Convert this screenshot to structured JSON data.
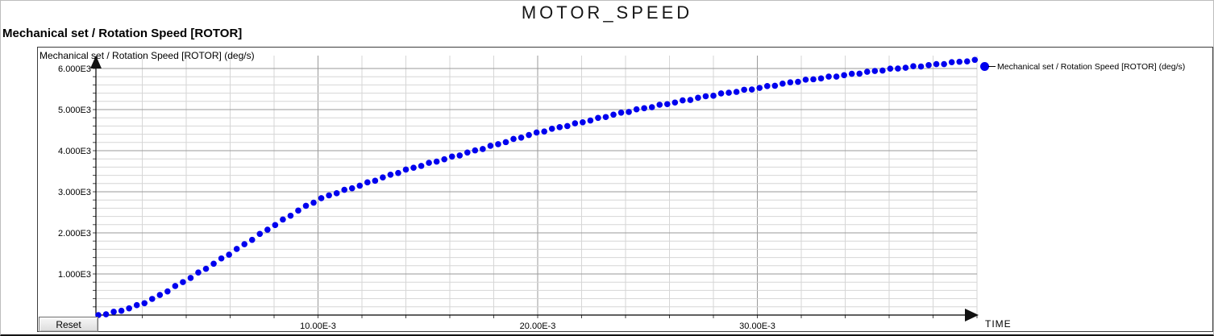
{
  "window": {
    "title": "MOTOR_SPEED"
  },
  "subtitle": "Mechanical set / Rotation Speed [ROTOR]",
  "plot": {
    "y_axis_title": "Mechanical set / Rotation Speed [ROTOR] (deg/s)",
    "x_axis_title": "TIME",
    "reset_label": "Reset",
    "legend": {
      "label": "Mechanical set / Rotation Speed [ROTOR] (deg/s)",
      "marker": "circle"
    }
  },
  "colors": {
    "curve": "#0000ee",
    "grid_minor": "#d6d6d6",
    "grid_major": "#9a9a9a",
    "axis": "#000000"
  },
  "chart_data": {
    "type": "scatter",
    "title": "MOTOR_SPEED",
    "xlabel": "TIME",
    "ylabel": "Mechanical set / Rotation Speed [ROTOR] (deg/s)",
    "x_units": "s",
    "xlim": [
      0,
      0.04
    ],
    "ylim": [
      0,
      6350
    ],
    "grid": "on",
    "legend_position": "right-top",
    "x_tick_labels": [
      "10.00E-3",
      "20.00E-3",
      "30.00E-3"
    ],
    "x_tick_values_s": [
      0.01,
      0.02,
      0.03
    ],
    "y_tick_labels": [
      "1.000E3",
      "2.000E3",
      "3.000E3",
      "4.000E3",
      "5.000E3",
      "6.000E3"
    ],
    "y_tick_values": [
      1000,
      2000,
      3000,
      4000,
      5000,
      6000
    ],
    "minor_grid_x_step_s": 0.002,
    "minor_grid_y_step": 200,
    "series": [
      {
        "name": "Mechanical set / Rotation Speed [ROTOR] (deg/s)",
        "color": "#0000ee",
        "marker": "circle",
        "points": [
          [
            0.0,
            0
          ],
          [
            0.002,
            280
          ],
          [
            0.004,
            850
          ],
          [
            0.006,
            1500
          ],
          [
            0.008,
            2180
          ],
          [
            0.01,
            2800
          ],
          [
            0.012,
            3170
          ],
          [
            0.014,
            3530
          ],
          [
            0.016,
            3830
          ],
          [
            0.018,
            4130
          ],
          [
            0.02,
            4440
          ],
          [
            0.022,
            4690
          ],
          [
            0.024,
            4940
          ],
          [
            0.026,
            5150
          ],
          [
            0.028,
            5350
          ],
          [
            0.03,
            5520
          ],
          [
            0.032,
            5700
          ],
          [
            0.034,
            5840
          ],
          [
            0.036,
            5980
          ],
          [
            0.038,
            6090
          ],
          [
            0.04,
            6200
          ]
        ]
      }
    ]
  }
}
